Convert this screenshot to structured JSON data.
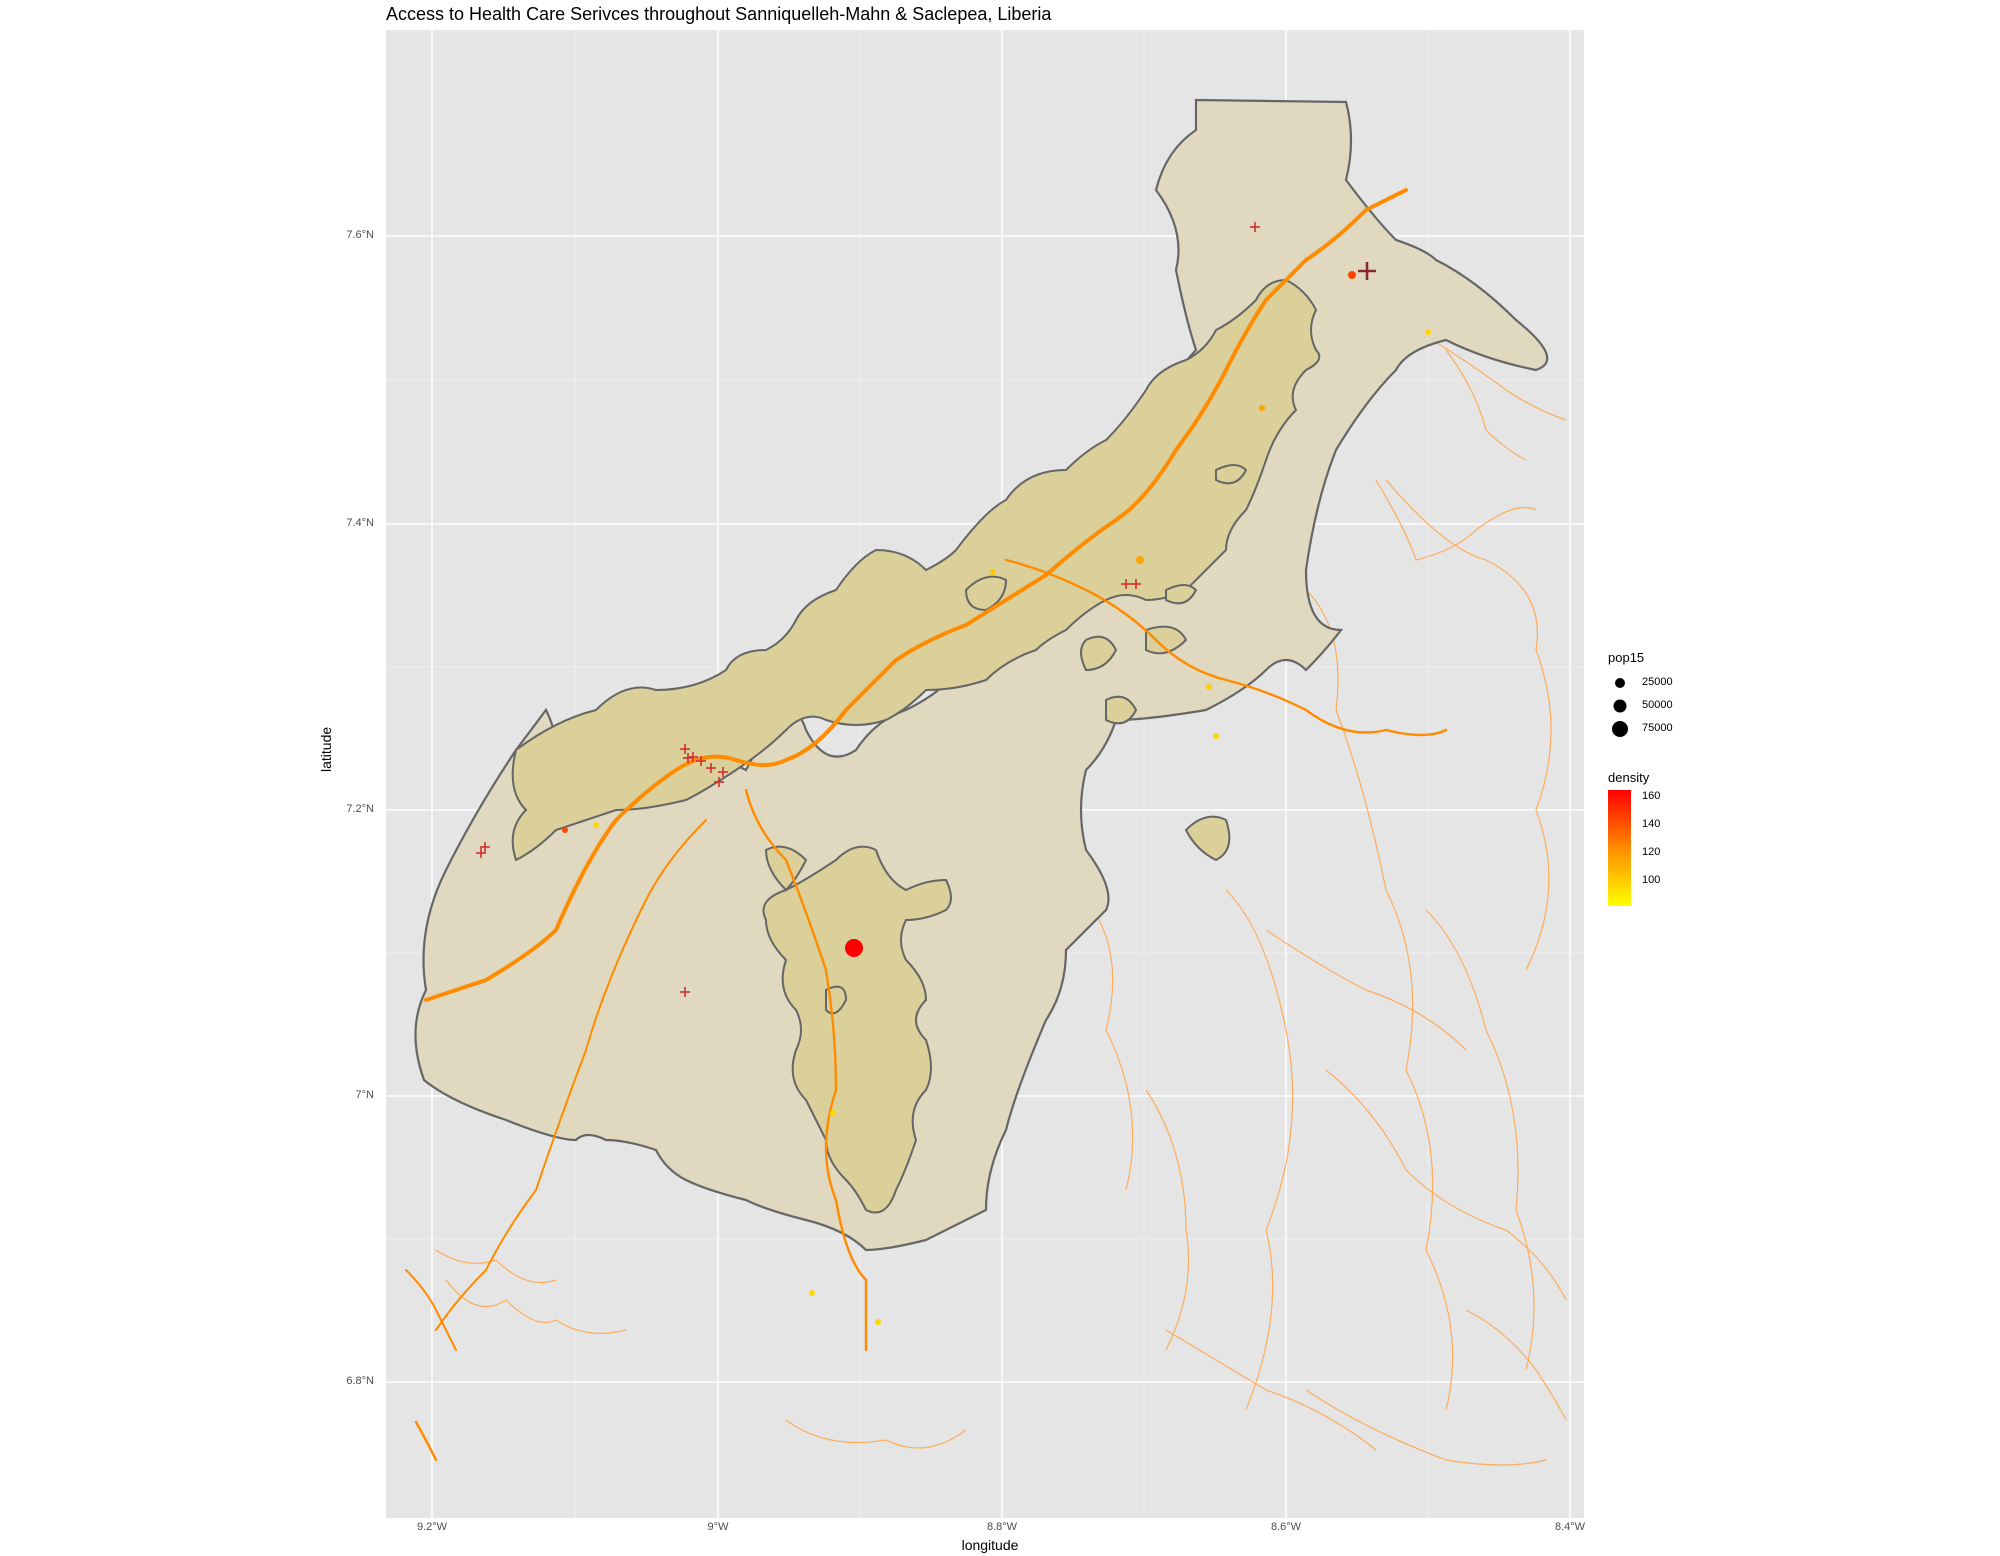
{
  "title": "Access to Health Care Serivces throughout Sanniquelleh-Mahn & Saclepea, Liberia",
  "xlabel": "longitude",
  "ylabel": "latitude",
  "x_ticks": [
    "9.2°W",
    "9°W",
    "8.8°W",
    "8.6°W",
    "8.4°W"
  ],
  "y_ticks": [
    "7.6°N",
    "7.4°N",
    "7.2°N",
    "7°N",
    "6.8°N"
  ],
  "legend_size": {
    "title": "pop15",
    "items": [
      "25000",
      "50000",
      "75000"
    ]
  },
  "legend_color": {
    "title": "density",
    "labels": [
      "160",
      "140",
      "120",
      "100"
    ],
    "low_color": "#ffff00",
    "high_color": "#ff0000"
  },
  "colors": {
    "panel": "#e5e5e5",
    "region_fill": "#e0d9c0",
    "region_stroke": "#666666",
    "dense_fill": "#dbcf9a",
    "road_primary": "#ff8c00",
    "road_secondary": "#ffa64d",
    "health_facility": "#d03030"
  }
}
